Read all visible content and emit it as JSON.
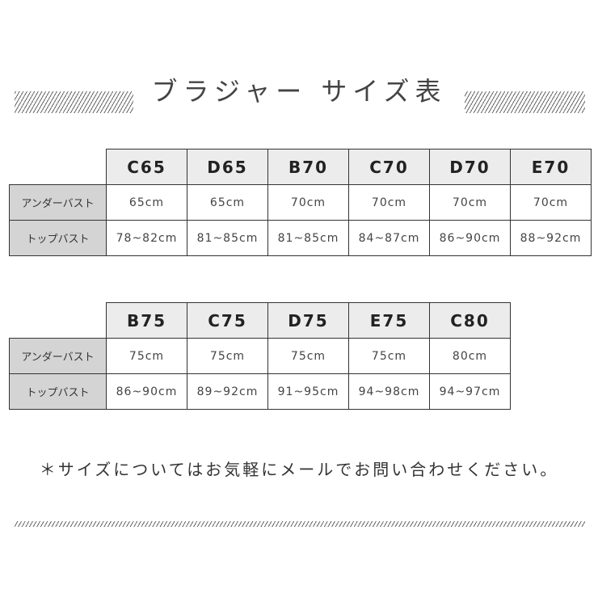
{
  "title": "ブラジャー サイズ表",
  "row_labels": {
    "under": "アンダーバスト",
    "top": "トップバスト"
  },
  "table1": {
    "sizes": [
      "C65",
      "D65",
      "B70",
      "C70",
      "D70",
      "E70"
    ],
    "under": [
      "65cm",
      "65cm",
      "70cm",
      "70cm",
      "70cm",
      "70cm"
    ],
    "top": [
      "78~82cm",
      "81~85cm",
      "81~85cm",
      "84~87cm",
      "86~90cm",
      "88~92cm"
    ]
  },
  "table2": {
    "sizes": [
      "B75",
      "C75",
      "D75",
      "E75",
      "C80"
    ],
    "under": [
      "75cm",
      "75cm",
      "75cm",
      "75cm",
      "80cm"
    ],
    "top": [
      "86~90cm",
      "89~92cm",
      "91~95cm",
      "94~98cm",
      "94~97cm"
    ]
  },
  "note": "＊サイズについてはお気軽にメールでお問い合わせください。"
}
